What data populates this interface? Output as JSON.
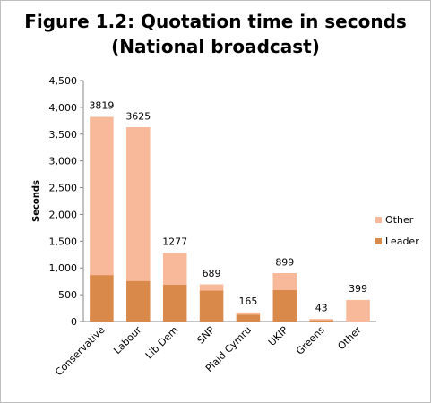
{
  "chart_data": {
    "type": "bar",
    "stacked": true,
    "title_line1": "Figure 1.2: Quotation time in seconds",
    "title_line2": "(National broadcast)",
    "xlabel": "",
    "ylabel": "Seconds",
    "ylim": [
      0,
      4500
    ],
    "yticks": [
      0,
      500,
      1000,
      1500,
      2000,
      2500,
      3000,
      3500,
      4000,
      4500
    ],
    "ytick_labels": [
      "0",
      "500",
      "1,000",
      "1,500",
      "2,000",
      "2,500",
      "3,000",
      "3,500",
      "4,000",
      "4,500"
    ],
    "grid": false,
    "legend_position": "right",
    "categories": [
      "Conservative",
      "Labour",
      "Lib Dem",
      "SNP",
      "Plaid Cymru",
      "UKIP",
      "Greens",
      "Other"
    ],
    "series": [
      {
        "name": "Leader",
        "color": "#d9894a",
        "values": [
          870,
          760,
          690,
          580,
          130,
          590,
          25,
          0
        ]
      },
      {
        "name": "Other",
        "color": "#f8b99a",
        "values": [
          2949,
          2865,
          587,
          109,
          35,
          309,
          18,
          399
        ]
      }
    ],
    "totals": [
      3819,
      3625,
      1277,
      689,
      165,
      899,
      43,
      399
    ],
    "total_labels": [
      "3819",
      "3625",
      "1277",
      "689",
      "165",
      "899",
      "43",
      "399"
    ],
    "legend": [
      "Other",
      "Leader"
    ]
  }
}
